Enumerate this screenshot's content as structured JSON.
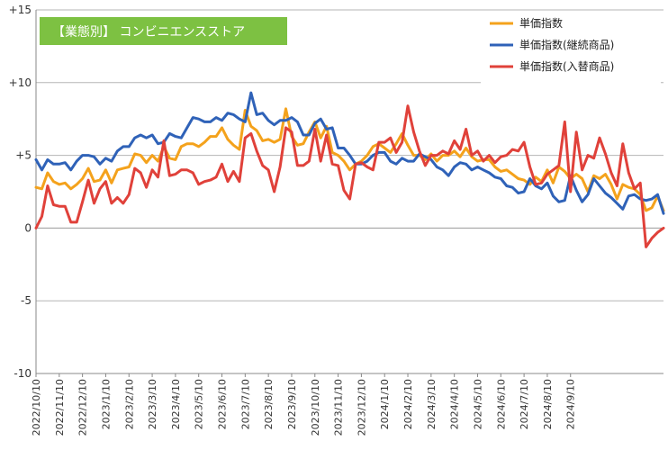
{
  "chart_data": {
    "type": "line",
    "title": "【業態別】 コンビニエンスストア",
    "title_bg": "#7dc142",
    "ylim": [
      -10,
      15
    ],
    "yticks": [
      {
        "value": 15,
        "label": "+15"
      },
      {
        "value": 10,
        "label": "+10"
      },
      {
        "value": 5,
        "label": "+5"
      },
      {
        "value": 0,
        "label": "0"
      },
      {
        "value": -5,
        "label": "-5"
      },
      {
        "value": -10,
        "label": "-10"
      }
    ],
    "grid": "horizontal",
    "legend_position": "top-right",
    "x_labels": [
      "2022/10/10",
      "2022/11/10",
      "2022/12/10",
      "2023/1/10",
      "2023/2/10",
      "2023/3/10",
      "2023/4/10",
      "2023/5/10",
      "2023/6/10",
      "2023/7/10",
      "2023/8/10",
      "2023/9/10",
      "2023/10/10",
      "2023/11/10",
      "2023/12/10",
      "2024/1/10",
      "2024/2/10",
      "2024/3/10",
      "2024/4/10",
      "2024/5/10",
      "2024/6/10",
      "2024/7/10",
      "2024/8/10",
      "2024/9/10"
    ],
    "x_label_index": [
      0,
      4,
      8,
      12,
      16,
      20,
      24,
      28,
      32,
      36,
      40,
      44,
      48,
      52,
      56,
      60,
      64,
      68,
      72,
      76,
      80,
      84,
      88,
      92
    ],
    "series": [
      {
        "name": "単価指数",
        "color": "#f4a21c",
        "values": [
          2.8,
          2.7,
          3.8,
          3.2,
          3.0,
          3.1,
          2.7,
          3.0,
          3.4,
          4.1,
          3.2,
          3.3,
          4.0,
          3.1,
          4.0,
          4.1,
          4.2,
          5.1,
          5.0,
          4.5,
          5.0,
          4.6,
          5.6,
          4.8,
          4.7,
          5.6,
          5.8,
          5.8,
          5.6,
          5.9,
          6.3,
          6.3,
          6.9,
          6.1,
          5.7,
          5.4,
          8.1,
          7.0,
          6.7,
          6.0,
          6.1,
          5.9,
          6.1,
          8.2,
          6.3,
          5.7,
          5.8,
          6.6,
          7.3,
          6.2,
          7.0,
          5.2,
          5.0,
          4.6,
          4.0,
          4.4,
          4.6,
          5.0,
          5.6,
          5.8,
          5.5,
          5.2,
          5.8,
          6.5,
          5.7,
          5.0,
          5.0,
          4.7,
          5.1,
          4.6,
          5.0,
          5.0,
          5.3,
          4.9,
          5.5,
          4.9,
          4.6,
          4.7,
          4.7,
          4.2,
          3.9,
          4.0,
          3.7,
          3.4,
          3.3,
          3.0,
          3.5,
          3.2,
          4.0,
          3.1,
          4.2,
          3.9,
          3.4,
          3.7,
          3.4,
          2.5,
          3.6,
          3.4,
          3.7,
          3.0,
          2.0,
          3.0,
          2.8,
          2.7,
          2.3,
          1.2,
          1.4,
          2.2,
          1.2
        ]
      },
      {
        "name": "単価指数(継続商品)",
        "color": "#2f62b8",
        "values": [
          4.7,
          4.0,
          4.7,
          4.4,
          4.4,
          4.5,
          4.0,
          4.6,
          5.0,
          5.0,
          4.9,
          4.4,
          4.8,
          4.6,
          5.3,
          5.6,
          5.6,
          6.2,
          6.4,
          6.2,
          6.4,
          5.8,
          5.9,
          6.5,
          6.3,
          6.2,
          6.9,
          7.6,
          7.5,
          7.3,
          7.3,
          7.6,
          7.4,
          7.9,
          7.8,
          7.5,
          7.3,
          9.3,
          7.8,
          7.9,
          7.4,
          7.1,
          7.4,
          7.4,
          7.6,
          7.3,
          6.4,
          6.4,
          7.2,
          7.5,
          6.8,
          6.9,
          5.5,
          5.5,
          5.0,
          4.4,
          4.4,
          4.6,
          5.0,
          5.2,
          5.2,
          4.6,
          4.4,
          4.8,
          4.6,
          4.6,
          5.1,
          4.9,
          4.7,
          4.2,
          4.0,
          3.6,
          4.2,
          4.5,
          4.4,
          4.0,
          4.2,
          4.0,
          3.8,
          3.5,
          3.4,
          2.9,
          2.8,
          2.4,
          2.5,
          3.4,
          2.9,
          2.7,
          3.1,
          2.2,
          1.8,
          1.9,
          3.6,
          2.6,
          1.8,
          2.3,
          3.4,
          2.9,
          2.4,
          2.1,
          1.7,
          1.3,
          2.2,
          2.3,
          2.0,
          1.9,
          2.0,
          2.3,
          1.0
        ]
      },
      {
        "name": "単価指数(入替商品)",
        "color": "#e0413a",
        "values": [
          0.0,
          0.8,
          2.9,
          1.6,
          1.5,
          1.5,
          0.4,
          0.4,
          1.8,
          3.3,
          1.7,
          2.7,
          3.2,
          1.7,
          2.1,
          1.7,
          2.3,
          4.1,
          3.8,
          2.8,
          4.0,
          3.5,
          6.0,
          3.6,
          3.7,
          4.0,
          4.0,
          3.8,
          3.0,
          3.2,
          3.3,
          3.5,
          4.4,
          3.2,
          3.9,
          3.2,
          6.2,
          6.5,
          5.3,
          4.3,
          4.0,
          2.5,
          4.2,
          6.9,
          6.6,
          4.3,
          4.3,
          4.6,
          6.8,
          4.6,
          6.4,
          4.4,
          4.3,
          2.6,
          2.0,
          4.4,
          4.5,
          4.2,
          4.0,
          5.9,
          5.9,
          6.2,
          5.2,
          5.9,
          8.4,
          6.6,
          5.3,
          4.3,
          5.0,
          5.0,
          5.3,
          5.1,
          6.0,
          5.4,
          6.8,
          5.0,
          5.3,
          4.6,
          5.0,
          4.5,
          4.9,
          5.0,
          5.4,
          5.3,
          5.9,
          4.2,
          3.0,
          3.1,
          3.7,
          4.0,
          4.3,
          7.3,
          2.5,
          6.6,
          4.0,
          5.0,
          4.8,
          6.2,
          5.1,
          3.8,
          2.9,
          5.8,
          3.8,
          2.7,
          3.1,
          -1.3,
          -0.7,
          -0.3,
          0.0
        ]
      }
    ]
  }
}
